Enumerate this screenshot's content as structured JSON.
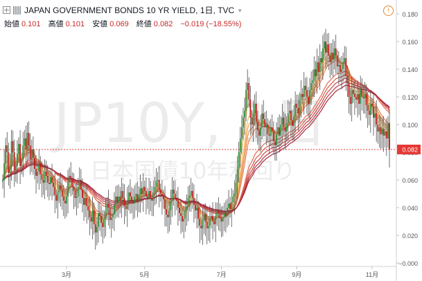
{
  "header": {
    "symbol_title": "JAPAN GOVERNMENT BONDS 10 YR YIELD, 1日, TVC",
    "info_icon": "!",
    "ohlc": [
      {
        "label": "始値",
        "value": "0.101"
      },
      {
        "label": "高値",
        "value": "0.101"
      },
      {
        "label": "安値",
        "value": "0.069"
      },
      {
        "label": "終値",
        "value": "0.082"
      }
    ],
    "change": "−0.019 (−18.55%)"
  },
  "watermark": {
    "ticker": "JP10Y, 1日",
    "name": "日本国債10年利回り"
  },
  "last_price_label": "0.082",
  "colors": {
    "candle_up": "#2e8b3d",
    "candle_down": "#b71c1c",
    "wick": "#4a4a4a",
    "price_line": "#e53935",
    "ribbon": [
      "#f9e27a",
      "#f7cf6a",
      "#f5bb62",
      "#f2a65c",
      "#ee9157",
      "#e87c52",
      "#df684e",
      "#d5564a",
      "#c84446",
      "#b83542",
      "#a7283e"
    ]
  },
  "chart_data": {
    "type": "line",
    "ylim": [
      0.0,
      0.19
    ],
    "y_ticks": [
      "0.180",
      "0.160",
      "0.140",
      "0.120",
      "0.100",
      "0.080",
      "0.060",
      "0.040",
      "0.020",
      "−0.000"
    ],
    "y_tick_values": [
      0.18,
      0.16,
      0.14,
      0.12,
      0.1,
      0.08,
      0.06,
      0.04,
      0.02,
      0.0
    ],
    "x_ticks": [
      "3月",
      "5月",
      "7月",
      "9月",
      "11月"
    ],
    "x_tick_index": [
      44,
      98,
      151,
      203,
      255
    ],
    "last_close": 0.082,
    "ohlc_close": [
      0.06,
      0.072,
      0.085,
      0.08,
      0.065,
      0.07,
      0.088,
      0.08,
      0.067,
      0.07,
      0.079,
      0.086,
      0.07,
      0.075,
      0.085,
      0.09,
      0.082,
      0.094,
      0.085,
      0.075,
      0.082,
      0.076,
      0.068,
      0.063,
      0.066,
      0.072,
      0.064,
      0.06,
      0.058,
      0.066,
      0.063,
      0.058,
      0.057,
      0.062,
      0.058,
      0.055,
      0.049,
      0.045,
      0.051,
      0.056,
      0.053,
      0.048,
      0.045,
      0.043,
      0.048,
      0.058,
      0.063,
      0.061,
      0.055,
      0.052,
      0.047,
      0.048,
      0.055,
      0.06,
      0.053,
      0.047,
      0.042,
      0.047,
      0.041,
      0.038,
      0.033,
      0.03,
      0.038,
      0.028,
      0.022,
      0.026,
      0.036,
      0.034,
      0.029,
      0.026,
      0.032,
      0.037,
      0.043,
      0.04,
      0.031,
      0.033,
      0.035,
      0.042,
      0.048,
      0.044,
      0.048,
      0.045,
      0.052,
      0.047,
      0.041,
      0.039,
      0.045,
      0.051,
      0.048,
      0.045,
      0.043,
      0.048,
      0.05,
      0.045,
      0.049,
      0.054,
      0.05,
      0.055,
      0.052,
      0.048,
      0.047,
      0.052,
      0.047,
      0.045,
      0.051,
      0.055,
      0.059,
      0.06,
      0.053,
      0.05,
      0.048,
      0.046,
      0.039,
      0.035,
      0.033,
      0.038,
      0.045,
      0.053,
      0.05,
      0.047,
      0.045,
      0.04,
      0.036,
      0.034,
      0.03,
      0.032,
      0.038,
      0.041,
      0.047,
      0.049,
      0.052,
      0.047,
      0.042,
      0.038,
      0.04,
      0.032,
      0.027,
      0.025,
      0.031,
      0.035,
      0.03,
      0.025,
      0.027,
      0.032,
      0.034,
      0.03,
      0.028,
      0.034,
      0.038,
      0.036,
      0.032,
      0.03,
      0.033,
      0.036,
      0.034,
      0.04,
      0.043,
      0.039,
      0.044,
      0.048,
      0.05,
      0.058,
      0.068,
      0.08,
      0.09,
      0.098,
      0.105,
      0.11,
      0.125,
      0.13,
      0.118,
      0.105,
      0.1,
      0.108,
      0.115,
      0.102,
      0.096,
      0.092,
      0.098,
      0.108,
      0.104,
      0.098,
      0.1,
      0.093,
      0.092,
      0.098,
      0.095,
      0.088,
      0.085,
      0.093,
      0.098,
      0.092,
      0.1,
      0.105,
      0.098,
      0.095,
      0.101,
      0.108,
      0.11,
      0.103,
      0.099,
      0.106,
      0.115,
      0.112,
      0.108,
      0.118,
      0.122,
      0.12,
      0.128,
      0.125,
      0.12,
      0.115,
      0.125,
      0.13,
      0.132,
      0.14,
      0.135,
      0.145,
      0.138,
      0.148,
      0.145,
      0.155,
      0.16,
      0.152,
      0.158,
      0.15,
      0.145,
      0.152,
      0.147,
      0.155,
      0.15,
      0.142,
      0.143,
      0.138,
      0.14,
      0.145,
      0.148,
      0.135,
      0.13,
      0.12,
      0.115,
      0.125,
      0.122,
      0.12,
      0.118,
      0.122,
      0.115,
      0.126,
      0.12,
      0.119,
      0.122,
      0.114,
      0.11,
      0.107,
      0.115,
      0.113,
      0.105,
      0.108,
      0.1,
      0.095,
      0.098,
      0.093,
      0.097,
      0.092,
      0.095,
      0.09,
      0.101,
      0.082
    ]
  }
}
